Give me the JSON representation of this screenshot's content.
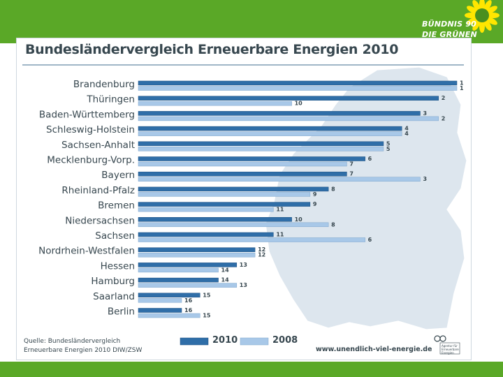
{
  "colors": {
    "green_bar": "#5aa827",
    "bar_2010": "#2f6ea8",
    "bar_2008": "#a8c8e8",
    "map_fill": "#dde6ee",
    "text": "#37474f"
  },
  "logo": {
    "line1": "BÜNDNIS 90",
    "line2": "DIE GRÜNEN",
    "icon": "sunflower-icon"
  },
  "footer": {
    "source_line1": "Quelle: Bundesländervergleich",
    "source_line2": "Erneuerbare Energien 2010 DIW/ZSW",
    "url": "www.unendlich-viel-energie.de",
    "logo_line1": "Agentur für",
    "logo_line2": "Erneuerbare",
    "logo_line3": "Energien"
  },
  "chart_data": {
    "type": "bar",
    "orientation": "horizontal",
    "title": "Bundesländervergleich Erneuerbare Energien 2010",
    "note": "Numbers are ranks (1 = best); bar length decreases with rank",
    "categories": [
      "Brandenburg",
      "Thüringen",
      "Baden-Württemberg",
      "Schleswig-Holstein",
      "Sachsen-Anhalt",
      "Mecklenburg-Vorp.",
      "Bayern",
      "Rheinland-Pfalz",
      "Bremen",
      "Niedersachsen",
      "Sachsen",
      "Nordrhein-Westfalen",
      "Hessen",
      "Hamburg",
      "Saarland",
      "Berlin"
    ],
    "series": [
      {
        "name": "2010",
        "values": [
          1,
          2,
          3,
          4,
          5,
          6,
          7,
          8,
          9,
          10,
          11,
          12,
          13,
          14,
          15,
          16
        ]
      },
      {
        "name": "2008",
        "values": [
          1,
          10,
          2,
          4,
          5,
          7,
          3,
          9,
          11,
          8,
          6,
          12,
          14,
          13,
          16,
          15
        ]
      }
    ],
    "legend": [
      "2010",
      "2008"
    ],
    "legend_position": "bottom",
    "rank_range": [
      1,
      16
    ]
  }
}
